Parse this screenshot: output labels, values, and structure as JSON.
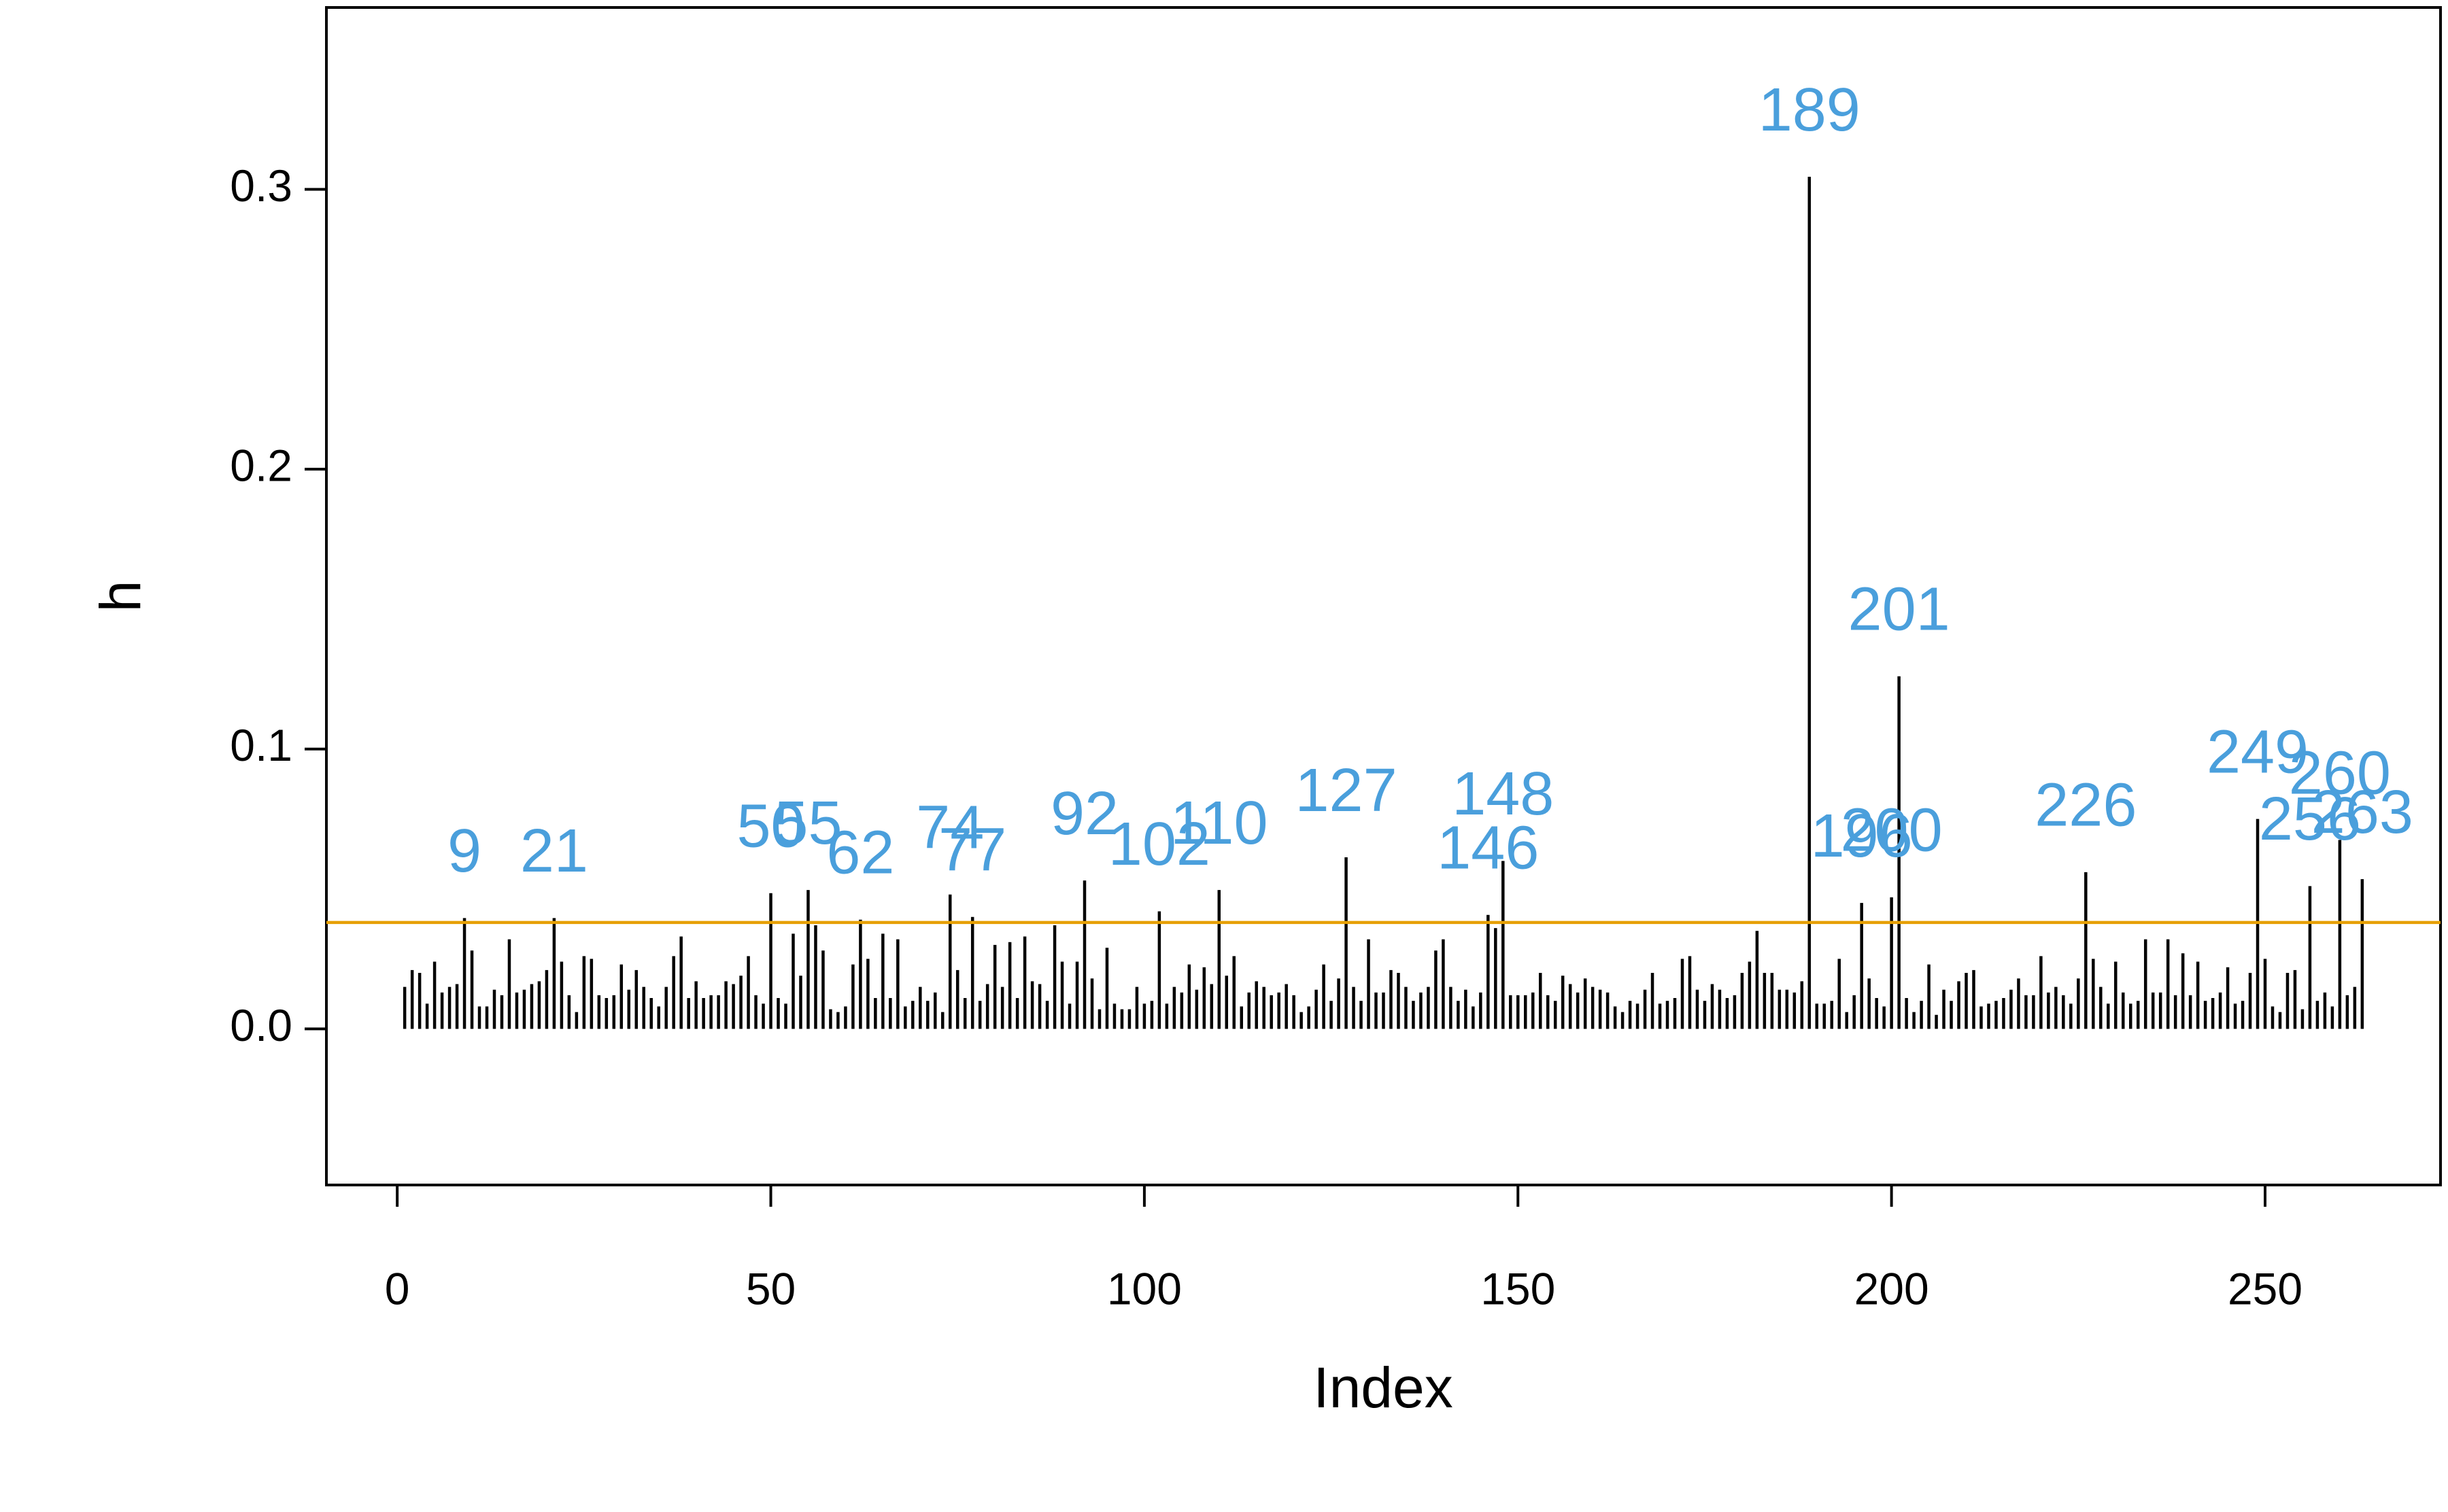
{
  "chart_data": {
    "type": "stick",
    "xlabel": "Index",
    "ylabel": "h",
    "values": [
      0.015,
      0.021,
      0.02,
      0.009,
      0.024,
      0.013,
      0.015,
      0.016,
      0.0396,
      0.028,
      0.008,
      0.008,
      0.014,
      0.012,
      0.032,
      0.013,
      0.014,
      0.016,
      0.017,
      0.021,
      0.0396,
      0.024,
      0.012,
      0.006,
      0.026,
      0.025,
      0.012,
      0.011,
      0.012,
      0.023,
      0.014,
      0.021,
      0.015,
      0.011,
      0.008,
      0.015,
      0.026,
      0.033,
      0.011,
      0.017,
      0.011,
      0.012,
      0.012,
      0.017,
      0.016,
      0.019,
      0.026,
      0.012,
      0.009,
      0.0485,
      0.011,
      0.009,
      0.034,
      0.019,
      0.0496,
      0.037,
      0.028,
      0.007,
      0.006,
      0.008,
      0.023,
      0.039,
      0.025,
      0.011,
      0.034,
      0.011,
      0.032,
      0.008,
      0.01,
      0.015,
      0.01,
      0.013,
      0.006,
      0.048,
      0.021,
      0.011,
      0.04,
      0.01,
      0.016,
      0.03,
      0.015,
      0.031,
      0.011,
      0.033,
      0.017,
      0.016,
      0.01,
      0.037,
      0.024,
      0.009,
      0.024,
      0.053,
      0.018,
      0.007,
      0.029,
      0.009,
      0.007,
      0.007,
      0.015,
      0.009,
      0.01,
      0.042,
      0.009,
      0.015,
      0.013,
      0.023,
      0.014,
      0.022,
      0.016,
      0.0496,
      0.019,
      0.026,
      0.008,
      0.013,
      0.017,
      0.015,
      0.012,
      0.013,
      0.016,
      0.012,
      0.006,
      0.008,
      0.014,
      0.023,
      0.01,
      0.018,
      0.0613,
      0.015,
      0.01,
      0.032,
      0.013,
      0.013,
      0.021,
      0.02,
      0.015,
      0.01,
      0.013,
      0.015,
      0.028,
      0.032,
      0.015,
      0.01,
      0.014,
      0.008,
      0.013,
      0.0407,
      0.036,
      0.06,
      0.012,
      0.012,
      0.012,
      0.013,
      0.02,
      0.012,
      0.01,
      0.019,
      0.016,
      0.013,
      0.018,
      0.015,
      0.014,
      0.013,
      0.008,
      0.006,
      0.01,
      0.009,
      0.014,
      0.02,
      0.009,
      0.01,
      0.011,
      0.025,
      0.026,
      0.014,
      0.01,
      0.016,
      0.014,
      0.011,
      0.012,
      0.02,
      0.024,
      0.035,
      0.02,
      0.02,
      0.014,
      0.014,
      0.013,
      0.017,
      0.3045,
      0.009,
      0.009,
      0.01,
      0.025,
      0.006,
      0.012,
      0.045,
      0.018,
      0.011,
      0.008,
      0.047,
      0.126,
      0.011,
      0.006,
      0.01,
      0.023,
      0.005,
      0.014,
      0.01,
      0.017,
      0.02,
      0.021,
      0.008,
      0.009,
      0.01,
      0.011,
      0.014,
      0.018,
      0.012,
      0.012,
      0.026,
      0.013,
      0.015,
      0.012,
      0.009,
      0.018,
      0.056,
      0.025,
      0.015,
      0.009,
      0.024,
      0.013,
      0.009,
      0.01,
      0.032,
      0.013,
      0.013,
      0.032,
      0.012,
      0.027,
      0.012,
      0.024,
      0.01,
      0.011,
      0.013,
      0.022,
      0.009,
      0.01,
      0.02,
      0.075,
      0.025,
      0.008,
      0.006,
      0.02,
      0.021,
      0.007,
      0.051,
      0.01,
      0.013,
      0.008,
      0.0675,
      0.012,
      0.015,
      0.0535
    ],
    "color": "#000000",
    "hline": 0.038,
    "hline_color": "#e69f00",
    "annotation_color": "#4a9fdc",
    "annotations": [
      {
        "x": 9,
        "text": "9"
      },
      {
        "x": 21,
        "text": "21"
      },
      {
        "x": 50,
        "text": "50"
      },
      {
        "x": 55,
        "text": "55"
      },
      {
        "x": 62,
        "text": "62"
      },
      {
        "x": 74,
        "text": "74"
      },
      {
        "x": 77,
        "text": "77"
      },
      {
        "x": 92,
        "text": "92"
      },
      {
        "x": 102,
        "text": "102"
      },
      {
        "x": 110,
        "text": "110"
      },
      {
        "x": 127,
        "text": "127"
      },
      {
        "x": 146,
        "text": "146"
      },
      {
        "x": 148,
        "text": "148"
      },
      {
        "x": 189,
        "text": "189"
      },
      {
        "x": 196,
        "text": "196"
      },
      {
        "x": 200,
        "text": "200"
      },
      {
        "x": 201,
        "text": "201"
      },
      {
        "x": 226,
        "text": "226"
      },
      {
        "x": 249,
        "text": "249"
      },
      {
        "x": 256,
        "text": "256"
      },
      {
        "x": 260,
        "text": "260"
      },
      {
        "x": 263,
        "text": "263"
      }
    ],
    "xlim": [
      -9.48,
      273.48
    ],
    "xticks": [
      0,
      50,
      100,
      150,
      200,
      250
    ],
    "ylim": [
      -0.0558,
      0.365
    ],
    "yticks": [
      {
        "value": 0,
        "label": "0.0"
      },
      0.1,
      0.2,
      0.3
    ]
  }
}
